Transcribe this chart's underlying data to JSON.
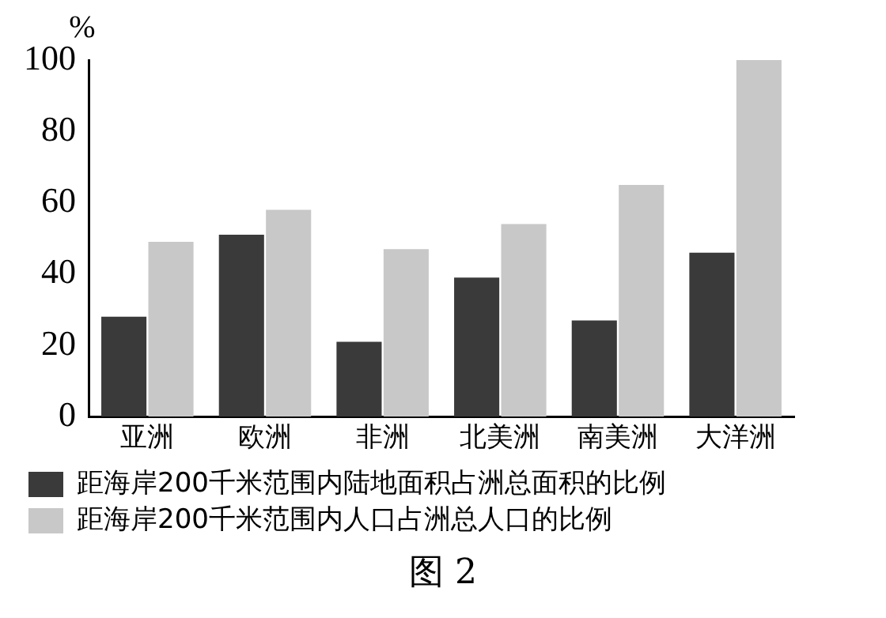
{
  "chart_data": {
    "type": "bar",
    "ylabel": "%",
    "categories": [
      "亚洲",
      "欧洲",
      "非洲",
      "北美洲",
      "南美洲",
      "大洋洲"
    ],
    "series": [
      {
        "name": "距海岸200千米范围内陆地面积占洲总面积的比例",
        "color": "#3a3a3a",
        "values": [
          28,
          51,
          21,
          39,
          27,
          46
        ]
      },
      {
        "name": "距海岸200千米范围内人口占洲总人口的比例",
        "color": "#c8c8c8",
        "values": [
          49,
          58,
          47,
          54,
          65,
          100
        ]
      }
    ],
    "ylim": [
      0,
      100
    ],
    "yticks": [
      0,
      20,
      40,
      60,
      80,
      100
    ],
    "grid": false,
    "legend": "bottom",
    "annotations": [
      "图 2"
    ]
  }
}
